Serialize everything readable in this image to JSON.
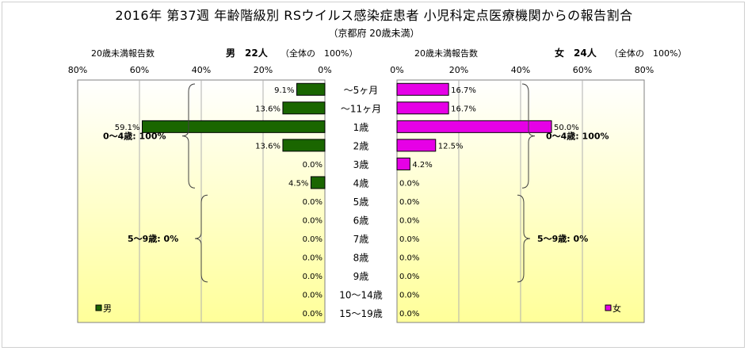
{
  "chart_data": {
    "type": "bar",
    "title": "2016年 第37週 年齢階級別 RSウイルス感染症患者 小児科定点医療機関からの報告割合",
    "subtitle": "（京都府 20歳未満）",
    "categories": [
      "～5ヶ月",
      "～11ヶ月",
      "1歳",
      "2歳",
      "3歳",
      "4歳",
      "5歳",
      "6歳",
      "7歳",
      "8歳",
      "9歳",
      "10～14歳",
      "15～19歳"
    ],
    "xlim": [
      0,
      80
    ],
    "x_ticks": [
      "80%",
      "60%",
      "40%",
      "20%",
      "0%"
    ],
    "x_ticks_right": [
      "0%",
      "20%",
      "40%",
      "60%",
      "80%"
    ],
    "series": [
      {
        "name": "男",
        "side": "left",
        "color": "#1a6600",
        "header_label": "20歳未満報告数",
        "header_total": "男　22人",
        "header_note": "（全体の　100%）",
        "values": [
          9.1,
          13.6,
          59.1,
          13.6,
          0.0,
          4.5,
          0.0,
          0.0,
          0.0,
          0.0,
          0.0,
          0.0,
          0.0
        ],
        "labels": [
          "9.1%",
          "13.6%",
          "59.1%",
          "13.6%",
          "0.0%",
          "4.5%",
          "0.0%",
          "0.0%",
          "0.0%",
          "0.0%",
          "0.0%",
          "0.0%",
          "0.0%"
        ],
        "group_labels": [
          "0～4歳: 100%",
          "5～9歳: 0%"
        ]
      },
      {
        "name": "女",
        "side": "right",
        "color": "#e600e6",
        "header_label": "20歳未満報告数",
        "header_total": "女　24人",
        "header_note": "（全体の　100%）",
        "values": [
          16.7,
          16.7,
          50.0,
          12.5,
          4.2,
          0.0,
          0.0,
          0.0,
          0.0,
          0.0,
          0.0,
          0.0,
          0.0
        ],
        "labels": [
          "16.7%",
          "16.7%",
          "50.0%",
          "12.5%",
          "4.2%",
          "0.0%",
          "0.0%",
          "0.0%",
          "0.0%",
          "0.0%",
          "0.0%",
          "0.0%",
          "0.0%"
        ],
        "group_labels": [
          "0～4歳: 100%",
          "5～9歳: 0%"
        ]
      }
    ],
    "legend": [
      "男",
      "女"
    ],
    "legend_position": "bottom-left / bottom-right",
    "grid": true
  },
  "colors": {
    "male": "#1a6600",
    "female": "#e600e6",
    "panel_top": "#ffffff",
    "panel_bottom": "#ffff99"
  }
}
